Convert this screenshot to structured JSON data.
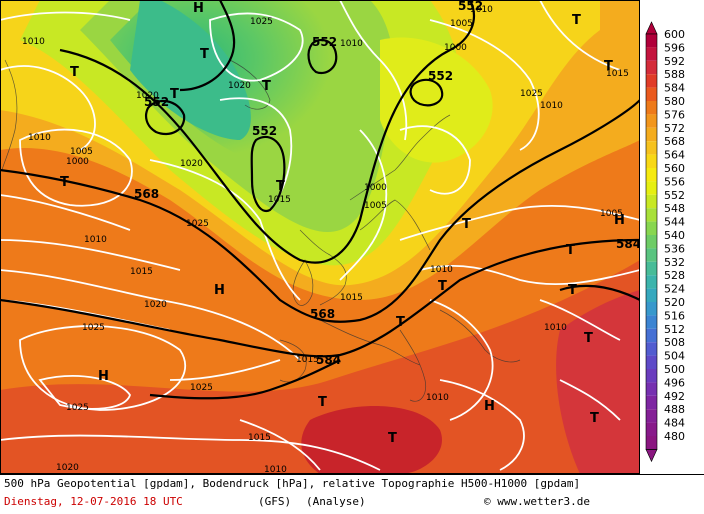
{
  "map": {
    "highs": "H",
    "lows": "T",
    "geopotential_labels": [
      "552",
      "552",
      "552",
      "552",
      "552",
      "568",
      "568",
      "584",
      "584"
    ],
    "pressure_labels": [
      "1025",
      "1010",
      "1005",
      "1010",
      "1000",
      "1020",
      "1000",
      "1005",
      "1020",
      "1025",
      "1015",
      "1010",
      "1015",
      "1020",
      "1025",
      "1025",
      "1015",
      "1010",
      "1000",
      "1005",
      "1010",
      "1015",
      "1010",
      "1010",
      "1015",
      "1015",
      "1010",
      "1025",
      "1020",
      "1020",
      "1025",
      "1010",
      "1005",
      "1010"
    ]
  },
  "legend": {
    "values": [
      "600",
      "596",
      "592",
      "588",
      "584",
      "580",
      "576",
      "572",
      "568",
      "564",
      "560",
      "556",
      "552",
      "548",
      "544",
      "540",
      "536",
      "532",
      "528",
      "524",
      "520",
      "516",
      "512",
      "508",
      "504",
      "500",
      "496",
      "492",
      "488",
      "484",
      "480"
    ],
    "colors": [
      "#b0003a",
      "#c4143e",
      "#d42c3a",
      "#e03c28",
      "#ea5a1e",
      "#ee7a1a",
      "#f2961c",
      "#f4ac1e",
      "#f6c21e",
      "#f8d816",
      "#f6ea10",
      "#e6ef12",
      "#c8e824",
      "#a8e03a",
      "#88d650",
      "#6ecc66",
      "#5ac480",
      "#48bc98",
      "#3cb4ac",
      "#36a8be",
      "#3898cc",
      "#3c84d2",
      "#4670d4",
      "#525cd0",
      "#5e4ac8",
      "#6a3cbe",
      "#7630b0",
      "#7e26a2",
      "#842096",
      "#881a8a",
      "#8a1680"
    ]
  },
  "footer": {
    "caption": "500 hPa Geopotential [gpdam], Bodendruck [hPa], relative Topographie H500-H1000 [gpdam]",
    "date": "Dienstag, 12-07-2016  18 UTC",
    "model": "(GFS)",
    "analysis": "(Analyse)",
    "credit": "© www.wetter3.de"
  }
}
